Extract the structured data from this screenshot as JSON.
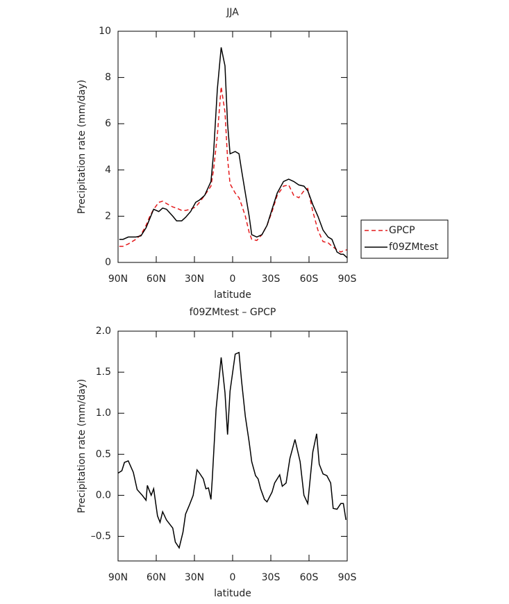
{
  "chart_data": [
    {
      "type": "line",
      "title": "JJA",
      "x_label": "latitude",
      "y_label": "Precipitation rate (mm/day)",
      "x": [
        89,
        86,
        82,
        76,
        72,
        68,
        65,
        62,
        58,
        55,
        52,
        47,
        44,
        40,
        37,
        33,
        29,
        26,
        22,
        17,
        15,
        12,
        9,
        6,
        4,
        2,
        -2,
        -5,
        -7,
        -10,
        -13,
        -15,
        -19,
        -23,
        -27,
        -31,
        -35,
        -40,
        -44,
        -48,
        -52,
        -56,
        -59,
        -63,
        -67,
        -71,
        -75,
        -78,
        -82,
        -85,
        -87,
        -90
      ],
      "series": [
        {
          "name": "GPCP",
          "color": "#e41a1c",
          "linestyle": "dashed",
          "values": [
            0.7,
            0.7,
            0.8,
            1.0,
            1.2,
            1.6,
            2.0,
            2.3,
            2.6,
            2.65,
            2.55,
            2.4,
            2.35,
            2.25,
            2.25,
            2.3,
            2.4,
            2.6,
            2.9,
            3.3,
            4.0,
            5.5,
            7.6,
            6.5,
            4.5,
            3.4,
            3.0,
            2.8,
            2.5,
            2.0,
            1.3,
            1.0,
            0.95,
            1.2,
            1.6,
            2.2,
            2.9,
            3.3,
            3.35,
            2.9,
            2.8,
            3.1,
            3.2,
            2.2,
            1.4,
            0.9,
            0.85,
            0.7,
            0.55,
            0.45,
            0.5,
            0.55
          ]
        },
        {
          "name": "f09ZMtest",
          "color": "#000000",
          "linestyle": "solid",
          "values": [
            1.0,
            1.0,
            1.1,
            1.1,
            1.15,
            1.5,
            1.9,
            2.3,
            2.2,
            2.35,
            2.3,
            2.0,
            1.8,
            1.8,
            1.95,
            2.2,
            2.6,
            2.7,
            2.9,
            3.5,
            4.7,
            7.5,
            9.3,
            8.5,
            6.0,
            4.7,
            4.8,
            4.7,
            4.0,
            3.0,
            2.0,
            1.2,
            1.1,
            1.2,
            1.6,
            2.3,
            3.0,
            3.5,
            3.6,
            3.5,
            3.35,
            3.3,
            3.1,
            2.5,
            2.0,
            1.4,
            1.1,
            1.0,
            0.45,
            0.35,
            0.35,
            0.2
          ]
        }
      ],
      "xlim": [
        90,
        -90
      ],
      "xticks": [
        {
          "value": 90,
          "label": "90N"
        },
        {
          "value": 60,
          "label": "60N"
        },
        {
          "value": 30,
          "label": "30N"
        },
        0,
        {
          "value": -30,
          "label": "30S"
        },
        {
          "value": -60,
          "label": "60S"
        },
        {
          "value": -90,
          "label": "90S"
        }
      ],
      "ylim": [
        0,
        10
      ],
      "yticks": [
        0,
        2,
        4,
        6,
        8,
        10
      ],
      "legend": "right",
      "grid": false
    },
    {
      "type": "line",
      "title": "f09ZMtest – GPCP",
      "x_label": "latitude",
      "y_label": "Precipitation rate (mm/day)",
      "x": [
        90,
        87,
        85,
        82,
        78,
        75,
        71,
        68,
        67,
        64,
        62,
        59,
        57,
        55,
        52,
        47,
        45,
        42,
        39,
        37,
        34,
        31,
        28,
        26,
        23,
        21,
        19,
        17,
        16,
        13,
        9,
        6,
        4,
        2,
        -2,
        -5,
        -7,
        -10,
        -13,
        -15,
        -18,
        -20,
        -22,
        -25,
        -27,
        -31,
        -33,
        -37,
        -39,
        -42,
        -45,
        -49,
        -53,
        -56,
        -59,
        -63,
        -66,
        -68,
        -71,
        -74,
        -77,
        -79,
        -82,
        -85,
        -87,
        -89
      ],
      "values": [
        0.27,
        0.3,
        0.4,
        0.42,
        0.28,
        0.07,
        0.0,
        -0.06,
        0.12,
        0.0,
        0.08,
        -0.25,
        -0.33,
        -0.2,
        -0.3,
        -0.4,
        -0.57,
        -0.64,
        -0.45,
        -0.23,
        -0.12,
        0.0,
        0.31,
        0.27,
        0.2,
        0.08,
        0.09,
        -0.05,
        0.2,
        1.05,
        1.68,
        1.25,
        0.74,
        1.27,
        1.72,
        1.74,
        1.4,
        0.96,
        0.65,
        0.41,
        0.24,
        0.2,
        0.08,
        -0.05,
        -0.08,
        0.04,
        0.15,
        0.25,
        0.11,
        0.15,
        0.45,
        0.68,
        0.41,
        0.0,
        -0.1,
        0.53,
        0.75,
        0.38,
        0.26,
        0.24,
        0.15,
        -0.16,
        -0.17,
        -0.1,
        -0.1,
        -0.3
      ],
      "color": "#000000",
      "xlim": [
        90,
        -90
      ],
      "xticks": [
        {
          "value": 90,
          "label": "90N"
        },
        {
          "value": 60,
          "label": "60N"
        },
        {
          "value": 30,
          "label": "30N"
        },
        0,
        {
          "value": -30,
          "label": "30S"
        },
        {
          "value": -60,
          "label": "60S"
        },
        {
          "value": -90,
          "label": "90S"
        }
      ],
      "ylim": [
        -0.8,
        2.0
      ],
      "yticks": [
        {
          "value": -0.5,
          "label": "–0.5"
        },
        {
          "value": 0,
          "label": "0.0"
        },
        0.5,
        {
          "value": 1,
          "label": "1.0"
        },
        1.5,
        {
          "value": 2,
          "label": "2.0"
        }
      ],
      "grid": false
    }
  ]
}
